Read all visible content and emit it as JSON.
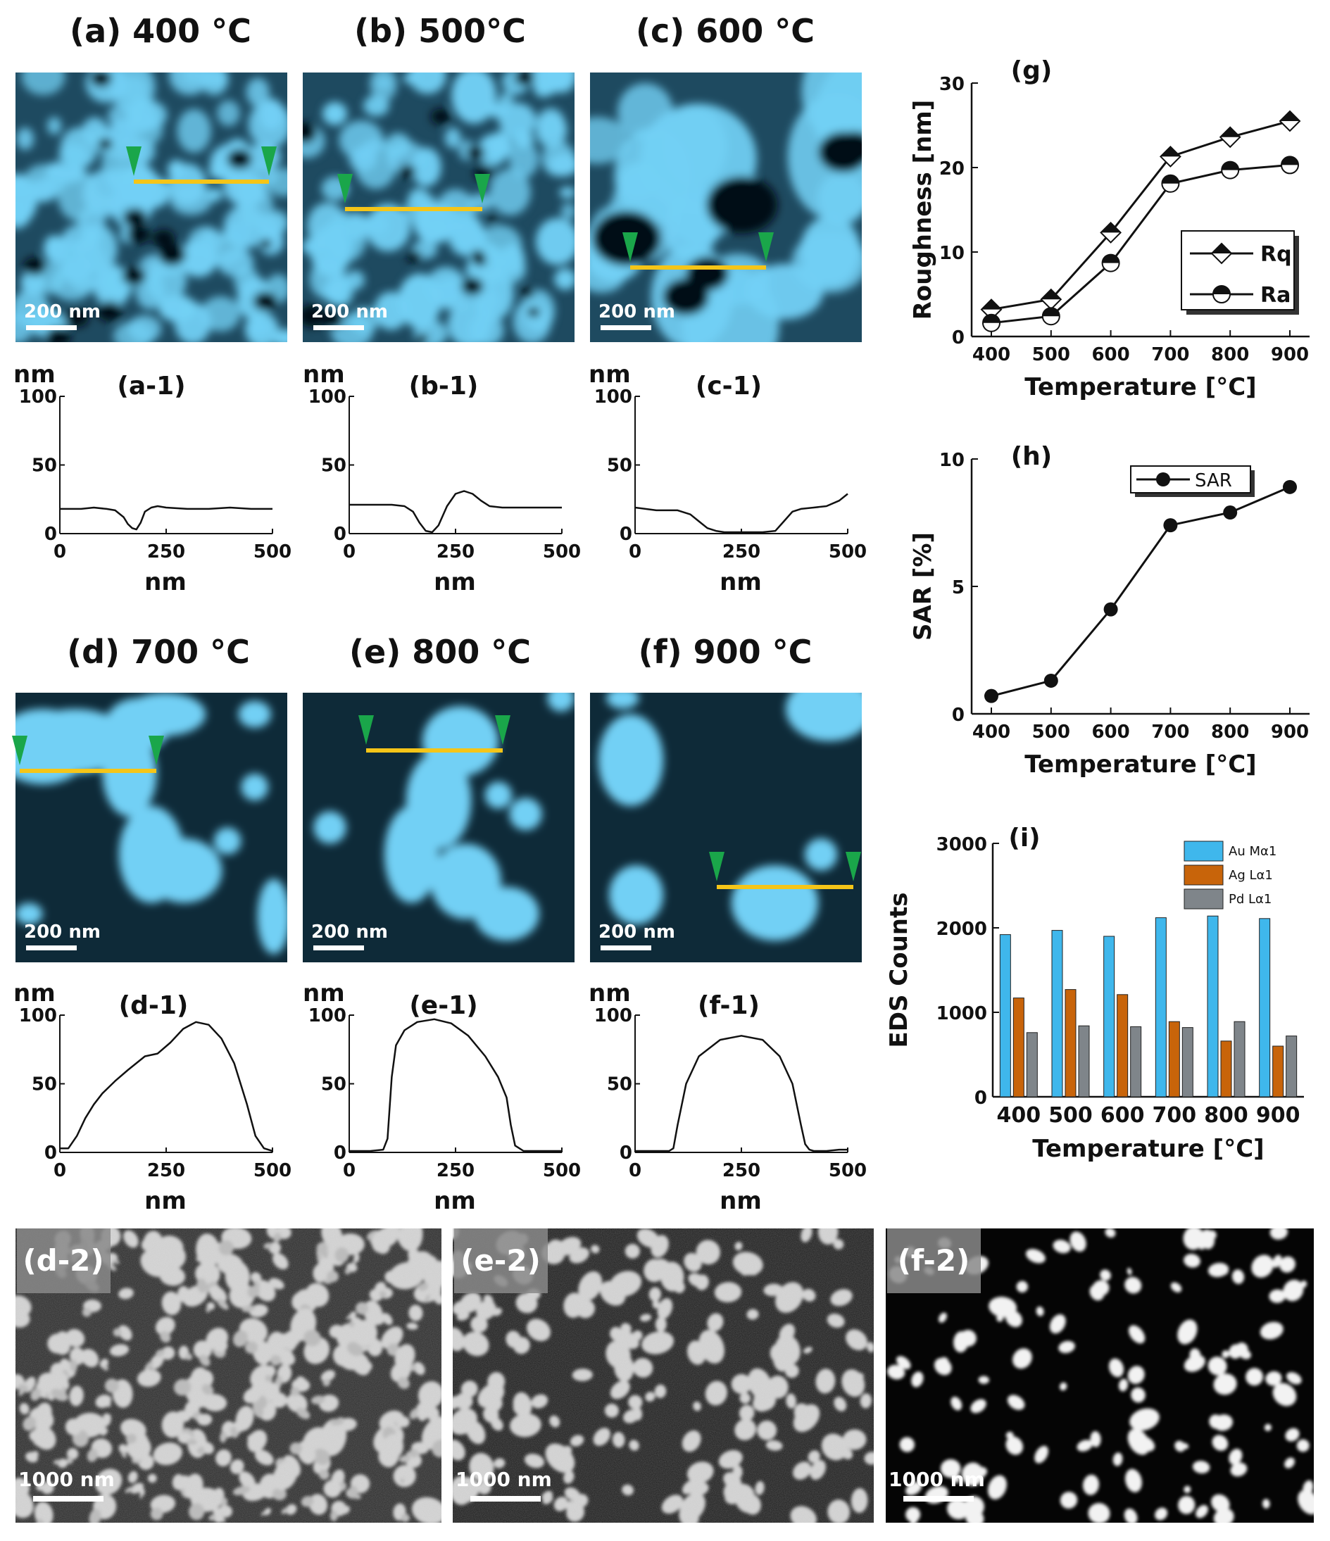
{
  "afm_panels": [
    {
      "title": "(a) 400 °C",
      "scale": "200 nm",
      "profile_label": "(a-1)"
    },
    {
      "title": "(b) 500°C",
      "scale": "200 nm",
      "profile_label": "(b-1)"
    },
    {
      "title": "(c) 600 °C",
      "scale": "200 nm",
      "profile_label": "(c-1)"
    },
    {
      "title": "(d) 700 °C",
      "scale": "200 nm",
      "profile_label": "(d-1)"
    },
    {
      "title": "(e) 800 °C",
      "scale": "200 nm",
      "profile_label": "(e-1)"
    },
    {
      "title": "(f) 900 °C",
      "scale": "200 nm",
      "profile_label": "(f-1)"
    }
  ],
  "profile_axes": {
    "y_unit": "nm",
    "x_unit": "nm",
    "yticks": [
      "0",
      "50",
      "100"
    ],
    "xticks": [
      "0",
      "250",
      "500"
    ]
  },
  "sem_panels": [
    {
      "label": "(d-2)",
      "scale": "1000 nm"
    },
    {
      "label": "(e-2)",
      "scale": "1000 nm"
    },
    {
      "label": "(f-2)",
      "scale": "1000 nm"
    }
  ],
  "colors": {
    "afm_particle": "#72d0f5",
    "afm_bg": "#0e2a38",
    "line_cut": "#f5c518",
    "marker": "#1aa64a",
    "au": "#3fb7ec",
    "ag": "#c8640a",
    "pd": "#7f858a"
  },
  "chart_data": [
    {
      "type": "line",
      "panel": "(g)",
      "x": [
        400,
        500,
        600,
        700,
        800,
        900
      ],
      "series": [
        {
          "name": "Rq",
          "values": [
            3.2,
            4.4,
            12.3,
            21.3,
            23.6,
            25.5
          ]
        },
        {
          "name": "Ra",
          "values": [
            1.6,
            2.4,
            8.7,
            18.1,
            19.7,
            20.3
          ]
        }
      ],
      "xlabel": "Temperature [°C]",
      "ylabel": "Roughness [nm]",
      "ylim": [
        0,
        30
      ],
      "yticks": [
        "0",
        "10",
        "20",
        "30"
      ],
      "xticks": [
        "400",
        "500",
        "600",
        "700",
        "800",
        "900"
      ],
      "legend": "right"
    },
    {
      "type": "line",
      "panel": "(h)",
      "x": [
        400,
        500,
        600,
        700,
        800,
        900
      ],
      "series": [
        {
          "name": "SAR",
          "values": [
            0.7,
            1.3,
            4.1,
            7.4,
            7.9,
            8.9
          ]
        }
      ],
      "xlabel": "Temperature [°C]",
      "ylabel": "SAR [%]",
      "ylim": [
        0,
        10
      ],
      "yticks": [
        "0",
        "5",
        "10"
      ],
      "xticks": [
        "400",
        "500",
        "600",
        "700",
        "800",
        "900"
      ],
      "legend": "top"
    },
    {
      "type": "bar",
      "panel": "(i)",
      "categories": [
        "400",
        "500",
        "600",
        "700",
        "800",
        "900"
      ],
      "series": [
        {
          "name": "Au Mα1",
          "values": [
            1920,
            1970,
            1900,
            2120,
            2140,
            2110
          ]
        },
        {
          "name": "Ag Lα1",
          "values": [
            1170,
            1270,
            1210,
            890,
            660,
            600
          ]
        },
        {
          "name": "Pd Lα1",
          "values": [
            760,
            840,
            830,
            820,
            890,
            720
          ]
        }
      ],
      "xlabel": "Temperature [°C]",
      "ylabel": "EDS Counts",
      "ylim": [
        0,
        3000
      ],
      "yticks": [
        "0",
        "1000",
        "2000",
        "3000"
      ],
      "legend": "top-right"
    },
    {
      "type": "line",
      "panel": "(a-1)",
      "x": [
        0,
        20,
        50,
        80,
        110,
        130,
        150,
        160,
        170,
        180,
        190,
        200,
        215,
        230,
        250,
        300,
        350,
        400,
        450,
        500
      ],
      "series": [
        {
          "values": [
            18,
            18,
            18,
            19,
            18,
            17,
            12,
            7,
            4,
            3,
            8,
            16,
            19,
            20,
            19,
            18,
            18,
            19,
            18,
            18
          ]
        }
      ],
      "xlim": [
        0,
        500
      ],
      "ylim": [
        0,
        100
      ]
    },
    {
      "type": "line",
      "panel": "(b-1)",
      "x": [
        0,
        50,
        100,
        130,
        150,
        165,
        180,
        195,
        210,
        230,
        250,
        270,
        290,
        310,
        330,
        360,
        400,
        450,
        500
      ],
      "series": [
        {
          "values": [
            21,
            21,
            21,
            20,
            16,
            8,
            2,
            1,
            6,
            20,
            29,
            31,
            29,
            24,
            20,
            19,
            19,
            19,
            19
          ]
        }
      ],
      "xlim": [
        0,
        500
      ],
      "ylim": [
        0,
        100
      ]
    },
    {
      "type": "line",
      "panel": "(c-1)",
      "x": [
        0,
        50,
        100,
        130,
        150,
        170,
        190,
        210,
        250,
        300,
        330,
        350,
        370,
        390,
        420,
        450,
        480,
        500
      ],
      "series": [
        {
          "values": [
            19,
            17,
            17,
            14,
            9,
            4,
            2,
            1,
            1,
            1,
            2,
            9,
            16,
            18,
            19,
            20,
            24,
            29
          ]
        }
      ],
      "xlim": [
        0,
        500
      ],
      "ylim": [
        0,
        100
      ]
    },
    {
      "type": "line",
      "panel": "(d-1)",
      "x": [
        0,
        20,
        40,
        60,
        80,
        100,
        130,
        160,
        200,
        230,
        260,
        290,
        320,
        350,
        380,
        410,
        440,
        460,
        480,
        500
      ],
      "series": [
        {
          "values": [
            3,
            3,
            12,
            25,
            35,
            43,
            52,
            60,
            70,
            72,
            80,
            90,
            95,
            93,
            83,
            65,
            35,
            12,
            3,
            1
          ]
        }
      ],
      "xlim": [
        0,
        500
      ],
      "ylim": [
        0,
        100
      ]
    },
    {
      "type": "line",
      "panel": "(e-1)",
      "x": [
        0,
        50,
        80,
        90,
        100,
        110,
        130,
        160,
        200,
        240,
        280,
        320,
        350,
        370,
        380,
        390,
        410,
        450,
        500
      ],
      "series": [
        {
          "values": [
            1,
            1,
            2,
            10,
            55,
            78,
            89,
            95,
            97,
            94,
            85,
            70,
            55,
            40,
            20,
            5,
            1,
            1,
            1
          ]
        }
      ],
      "xlim": [
        0,
        500
      ],
      "ylim": [
        0,
        100
      ]
    },
    {
      "type": "line",
      "panel": "(f-1)",
      "x": [
        0,
        50,
        80,
        90,
        100,
        120,
        150,
        200,
        250,
        300,
        340,
        370,
        390,
        400,
        410,
        420,
        450,
        480,
        500
      ],
      "series": [
        {
          "values": [
            1,
            1,
            1,
            3,
            20,
            50,
            70,
            82,
            85,
            82,
            70,
            50,
            20,
            6,
            2,
            1,
            1,
            2,
            2
          ]
        }
      ],
      "xlim": [
        0,
        500
      ],
      "ylim": [
        0,
        100
      ]
    }
  ]
}
